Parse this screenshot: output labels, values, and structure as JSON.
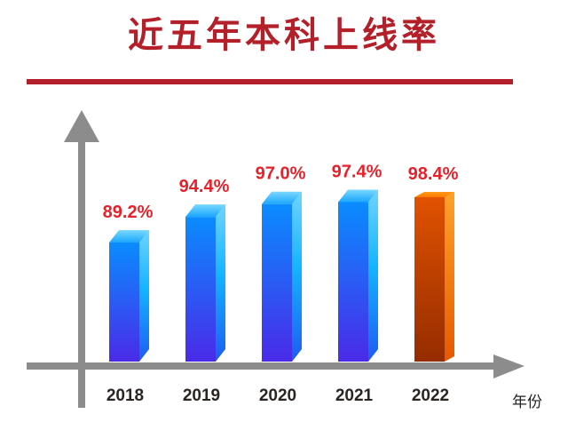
{
  "chart_data": {
    "type": "bar",
    "title": "近五年本科上线率",
    "xlabel": "年份",
    "ylabel": "",
    "categories": [
      "2018",
      "2019",
      "2020",
      "2021",
      "2022"
    ],
    "values": [
      89.2,
      94.4,
      97.0,
      97.4,
      98.4
    ],
    "value_labels": [
      "89.2%",
      "94.4%",
      "97.0%",
      "97.4%",
      "98.4%"
    ],
    "unit": "%",
    "grid": false,
    "legend": null,
    "highlight_index": 4
  },
  "colors": {
    "title": "#b3202a",
    "value_label": "#e8202a",
    "axis": "#8c8c8c",
    "category_label": "#2b2522",
    "bar_blue_top": "#0a8cff",
    "bar_blue_bottom": "#4a2ae8",
    "bar_highlight_top": "#e05200",
    "bar_highlight_bottom": "#9a2e00"
  }
}
